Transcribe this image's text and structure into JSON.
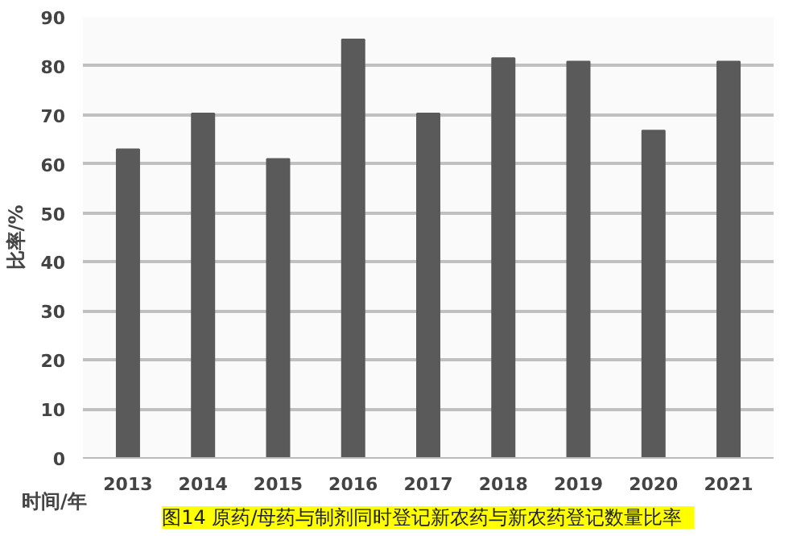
{
  "chart_data": {
    "type": "bar",
    "title": "图14   原药/母药与制剂同时登记新农药与新农药登记数量比率",
    "xlabel": "时间/年",
    "ylabel": "比率/%",
    "categories": [
      "2013",
      "2014",
      "2015",
      "2016",
      "2017",
      "2018",
      "2019",
      "2020",
      "2021"
    ],
    "values": [
      63.0,
      70.3,
      61.0,
      85.4,
      70.3,
      81.6,
      80.9,
      66.8,
      80.9
    ],
    "color": "#5a5a5a",
    "ylim": [
      0,
      90
    ],
    "yticks": [
      0,
      10,
      20,
      30,
      40,
      50,
      60,
      70,
      80,
      90
    ],
    "grid": "y"
  }
}
